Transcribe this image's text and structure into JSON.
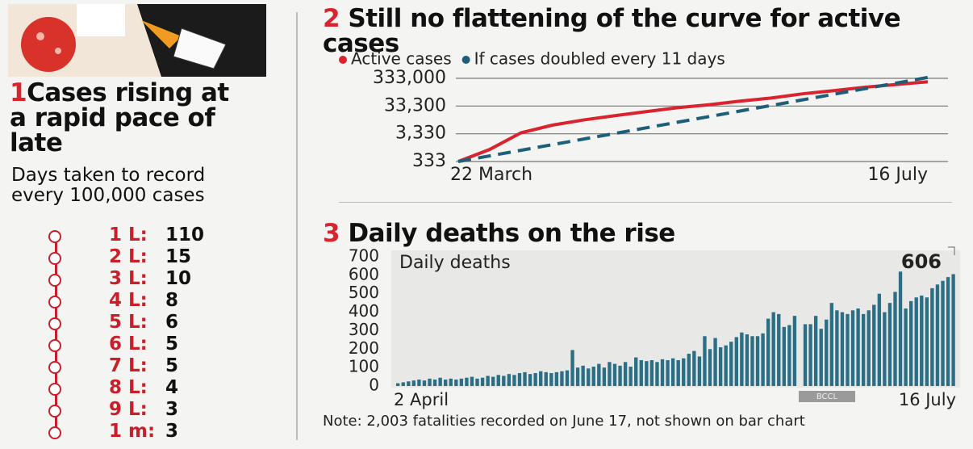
{
  "panel_1": {
    "number": "1",
    "title": "Cases rising at a rapid pace of late",
    "subtitle": "Days taken to record every 100,000 cases",
    "items": [
      {
        "label": "1 L:",
        "value": 110
      },
      {
        "label": "2 L:",
        "value": 15
      },
      {
        "label": "3 L:",
        "value": 10
      },
      {
        "label": "4 L:",
        "value": 8
      },
      {
        "label": "5 L:",
        "value": 6
      },
      {
        "label": "6 L:",
        "value": 5
      },
      {
        "label": "7 L:",
        "value": 5
      },
      {
        "label": "8 L:",
        "value": 4
      },
      {
        "label": "9 L:",
        "value": 3
      },
      {
        "label": "1 m:",
        "value": 3
      }
    ]
  },
  "chart_data": [
    {
      "type": "line",
      "number": "2",
      "title": "Still no flattening of the curve for active cases",
      "categories": [
        "22 March",
        null,
        null,
        null,
        null,
        null,
        null,
        null,
        null,
        null,
        null,
        null,
        null,
        null,
        null,
        "16 July"
      ],
      "series": [
        {
          "name": "Active cases",
          "color": "#d9232e",
          "dashed": false,
          "values": [
            333,
            900,
            3600,
            6800,
            10500,
            15000,
            21000,
            29000,
            37000,
            50000,
            65000,
            92000,
            120000,
            160000,
            200000,
            250000
          ]
        },
        {
          "name": "If cases doubled every 11 days",
          "color": "#1d5f78",
          "dashed": true,
          "values": [
            333,
            531,
            845,
            1346,
            2145,
            3417,
            5444,
            8672,
            13815,
            22008,
            35060,
            55850,
            88970,
            141700,
            225800,
            359700
          ]
        }
      ],
      "log_y": true,
      "ylim": [
        333,
        333000
      ],
      "yticks": [
        333,
        {
          "value": 3330,
          "label": "3,330"
        },
        {
          "value": 33300,
          "label": "33,300"
        },
        {
          "value": 333000,
          "label": "333,000"
        }
      ],
      "grid": true
    },
    {
      "type": "bar",
      "number": "3",
      "title": "Daily deaths on the rise",
      "y_label": "Daily deaths",
      "color": "#2a6f86",
      "categories": [
        "2 April",
        null,
        null,
        null,
        null,
        null,
        null,
        null,
        null,
        null,
        null,
        null,
        null,
        null,
        null,
        null,
        null,
        null,
        null,
        null,
        null,
        null,
        null,
        null,
        null,
        null,
        null,
        null,
        null,
        null,
        null,
        null,
        null,
        null,
        null,
        null,
        null,
        null,
        null,
        null,
        null,
        null,
        null,
        null,
        null,
        null,
        null,
        null,
        null,
        null,
        null,
        null,
        null,
        null,
        null,
        null,
        null,
        null,
        null,
        null,
        null,
        null,
        null,
        null,
        null,
        null,
        null,
        null,
        null,
        null,
        null,
        null,
        null,
        null,
        null,
        null,
        null,
        null,
        null,
        null,
        null,
        null,
        null,
        null,
        null,
        null,
        null,
        null,
        null,
        null,
        null,
        null,
        null,
        null,
        null,
        null,
        null,
        null,
        null,
        null,
        null,
        null,
        null,
        null,
        null,
        "16 July"
      ],
      "values": [
        15,
        20,
        25,
        30,
        35,
        30,
        40,
        35,
        45,
        35,
        40,
        35,
        40,
        45,
        50,
        40,
        45,
        55,
        50,
        60,
        55,
        65,
        60,
        70,
        75,
        65,
        70,
        80,
        75,
        70,
        75,
        80,
        85,
        195,
        100,
        110,
        95,
        105,
        120,
        100,
        130,
        120,
        110,
        130,
        105,
        155,
        140,
        135,
        140,
        130,
        145,
        140,
        150,
        140,
        150,
        175,
        190,
        160,
        270,
        200,
        260,
        210,
        220,
        240,
        265,
        290,
        280,
        270,
        270,
        285,
        365,
        400,
        390,
        320,
        330,
        380,
        null,
        335,
        335,
        380,
        310,
        360,
        450,
        410,
        400,
        390,
        410,
        420,
        390,
        410,
        440,
        500,
        400,
        450,
        510,
        620,
        420,
        460,
        480,
        490,
        480,
        530,
        550,
        570,
        590,
        606
      ],
      "ylim": [
        0,
        700
      ],
      "yticks": [
        0,
        100,
        200,
        300,
        400,
        500,
        600,
        700
      ],
      "grid": false,
      "note": "Note: 2,003 fatalities recorded on June 17, not shown on bar chart",
      "watermark": "BCCL"
    }
  ]
}
